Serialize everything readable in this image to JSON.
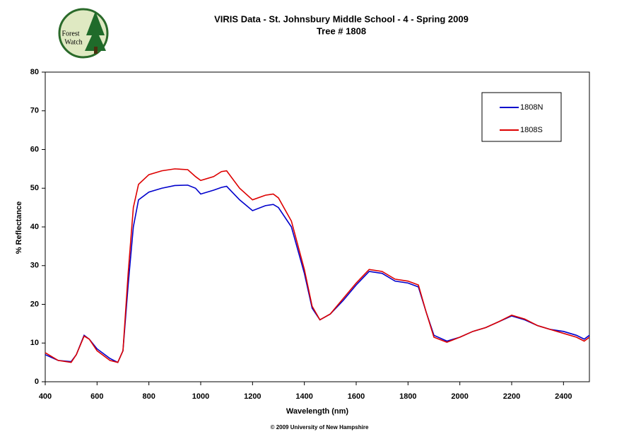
{
  "chart_data": {
    "type": "line",
    "title": "VIRIS Data - St. Johnsbury Middle School - 4 - Spring 2009",
    "subtitle": "Tree # 1808",
    "logo_text": [
      "Forest",
      "Watch"
    ],
    "x_label": "Wavelength (nm)",
    "y_label": "% Reflectance",
    "footer": "© 2009 University of New Hampshire",
    "x": [
      400,
      450,
      500,
      520,
      550,
      570,
      600,
      650,
      680,
      700,
      720,
      740,
      760,
      800,
      850,
      900,
      950,
      980,
      1000,
      1050,
      1080,
      1100,
      1150,
      1200,
      1250,
      1280,
      1300,
      1350,
      1400,
      1430,
      1460,
      1500,
      1550,
      1600,
      1650,
      1700,
      1750,
      1800,
      1840,
      1870,
      1900,
      1950,
      2000,
      2050,
      2100,
      2150,
      2200,
      2250,
      2300,
      2350,
      2400,
      2450,
      2480,
      2500
    ],
    "series": [
      {
        "name": "1808N",
        "color": "#0000cc",
        "values": [
          7,
          5.5,
          5.2,
          7,
          12,
          11,
          8.5,
          6,
          5,
          8,
          25,
          40,
          47,
          49,
          50,
          50.7,
          50.8,
          50,
          48.5,
          49.5,
          50.2,
          50.5,
          47,
          44.2,
          45.5,
          45.8,
          45,
          40,
          28,
          19,
          16,
          17.5,
          21,
          25,
          28.5,
          28,
          26,
          25.5,
          24.5,
          18,
          12,
          10.5,
          11.5,
          13,
          14,
          15.5,
          17,
          16,
          14.5,
          13.5,
          13,
          12,
          11,
          12
        ]
      },
      {
        "name": "1808S",
        "color": "#dd0000",
        "values": [
          7.5,
          5.5,
          5,
          7,
          11.8,
          11,
          8,
          5.5,
          5,
          8,
          28,
          45,
          51,
          53.5,
          54.5,
          55,
          54.8,
          53,
          52,
          53,
          54.3,
          54.5,
          50,
          47,
          48.2,
          48.5,
          47.5,
          41.5,
          29,
          19.5,
          16,
          17.5,
          21.5,
          25.5,
          29,
          28.5,
          26.5,
          26,
          25,
          18,
          11.5,
          10.2,
          11.5,
          13,
          14,
          15.5,
          17.2,
          16.2,
          14.5,
          13.5,
          12.5,
          11.5,
          10.5,
          11.5
        ]
      }
    ],
    "xlim": [
      400,
      2500
    ],
    "xticks": [
      400,
      600,
      800,
      1000,
      1200,
      1400,
      1600,
      1800,
      2000,
      2200,
      2400
    ],
    "ylim": [
      0,
      80
    ],
    "yticks": [
      0,
      10,
      20,
      30,
      40,
      50,
      60,
      70,
      80
    ],
    "grid": false,
    "legend": "upper right"
  }
}
